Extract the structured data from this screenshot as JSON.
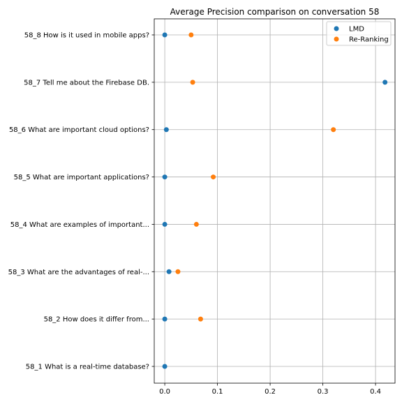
{
  "chart_data": {
    "type": "scatter",
    "title": "Average Precision comparison on conversation 58",
    "xlabel": "",
    "ylabel": "",
    "xlim": [
      -0.02,
      0.437
    ],
    "x_ticks": [
      0.0,
      0.1,
      0.2,
      0.3,
      0.4
    ],
    "x_tick_labels": [
      "0.0",
      "0.1",
      "0.2",
      "0.3",
      "0.4"
    ],
    "categories": [
      "58_1 What is a real-time database?",
      "58_2 How does it differ from...",
      "58_3 What are the advantages of real-...",
      "58_4 What are examples of important...",
      "58_5 What are important applications?",
      "58_6 What are important cloud options?",
      "58_7 Tell me about the Firebase DB.",
      "58_8 How is it used in mobile apps?"
    ],
    "series": [
      {
        "name": "LMD",
        "color": "#1f77b4",
        "values": [
          0.0,
          0.0,
          0.008,
          0.0,
          0.0,
          0.003,
          0.418,
          0.0
        ]
      },
      {
        "name": "Re-Ranking",
        "color": "#ff7f0e",
        "values": [
          null,
          0.068,
          0.025,
          0.06,
          0.092,
          0.32,
          0.053,
          0.05
        ]
      }
    ],
    "grid": true,
    "legend_position": "top-right"
  }
}
